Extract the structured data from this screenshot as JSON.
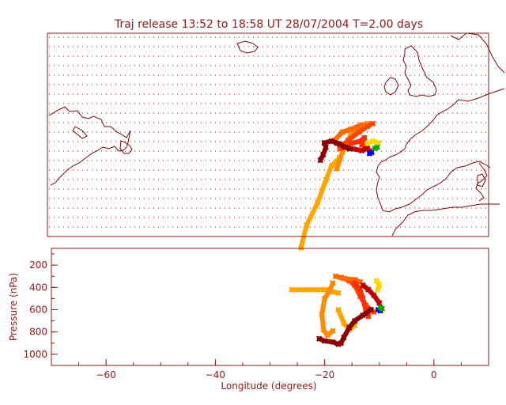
{
  "title": "Traj release 13:52 to 18:58 UT 28/07/2004    T=2.00 days",
  "colors": {
    "frame": "#8b1a1a",
    "coast": "#7a0a0a",
    "grid": "#8b1a1a"
  },
  "chart_data": [
    {
      "type": "map",
      "lon_range": [
        -70,
        10
      ],
      "lat_range": [
        32,
        68
      ],
      "grid": true,
      "trajectories": [
        {
          "color": "#ffa500",
          "points": [
            [
              -24,
              30
            ],
            [
              -23,
              34
            ],
            [
              -21,
              38
            ],
            [
              -19.5,
              42
            ],
            [
              -18.5,
              44.5
            ],
            [
              -17,
              46
            ]
          ]
        },
        {
          "color": "#ff8c00",
          "points": [
            [
              -17.5,
              44
            ],
            [
              -16.5,
              47
            ],
            [
              -15,
              50
            ],
            [
              -13.5,
              51.5
            ],
            [
              -12,
              52
            ]
          ]
        },
        {
          "color": "#ff4500",
          "points": [
            [
              -17,
              47.5
            ],
            [
              -15.5,
              49
            ],
            [
              -13.5,
              50.5
            ],
            [
              -12,
              51.5
            ],
            [
              -11,
              52
            ]
          ]
        },
        {
          "color": "#ff6a00",
          "points": [
            [
              -18,
              49
            ],
            [
              -16.5,
              50.5
            ],
            [
              -15,
              51
            ],
            [
              -13,
              51.8
            ]
          ]
        },
        {
          "color": "#ff2d00",
          "points": [
            [
              -15,
              48.5
            ],
            [
              -13.5,
              48.8
            ],
            [
              -12.5,
              49.5
            ],
            [
              -13,
              48.2
            ],
            [
              -11.5,
              47.2
            ]
          ]
        },
        {
          "color": "#ffd700",
          "points": [
            [
              -12,
              48.4
            ],
            [
              -11,
              48.9
            ],
            [
              -10,
              48.6
            ]
          ]
        },
        {
          "color": "#c00000",
          "points": [
            [
              -17.5,
              48.5
            ],
            [
              -16,
              47.8
            ],
            [
              -14.5,
              47.5
            ],
            [
              -13,
              47.2
            ],
            [
              -12,
              47.6
            ]
          ]
        },
        {
          "color": "#8b0000",
          "points": [
            [
              -20.5,
              45.5
            ],
            [
              -20,
              46.5
            ],
            [
              -19.5,
              47.8
            ],
            [
              -19.8,
              48.6
            ],
            [
              -18.5,
              48.9
            ],
            [
              -17,
              48.4
            ],
            [
              -16,
              47.8
            ],
            [
              -15.2,
              47.5
            ]
          ]
        },
        {
          "color": "#0000ff",
          "points": [
            [
              -11.6,
              46.7
            ],
            [
              -11.2,
              46.9
            ]
          ]
        },
        {
          "color": "#00aa00",
          "points": [
            [
              -10.6,
              47.6
            ],
            [
              -10.2,
              47.8
            ]
          ]
        }
      ]
    },
    {
      "type": "line",
      "xlabel": "Longitude  (degrees)",
      "ylabel": "Pressure  (nPa)",
      "xlim": [
        -70,
        10
      ],
      "ylim": [
        1100,
        50
      ],
      "xticks": [
        -60,
        -40,
        -20,
        0
      ],
      "yticks": [
        200,
        400,
        600,
        800,
        1000
      ],
      "trajectories": [
        {
          "color": "#ffa500",
          "points": [
            [
              -26,
              420
            ],
            [
              -23,
              420
            ],
            [
              -20,
              420
            ],
            [
              -18.5,
              440
            ],
            [
              -17.5,
              450
            ]
          ]
        },
        {
          "color": "#ff8c00",
          "points": [
            [
              -18.5,
              360
            ],
            [
              -19,
              420
            ],
            [
              -20,
              500
            ],
            [
              -20.5,
              640
            ],
            [
              -20.2,
              780
            ],
            [
              -19.5,
              830
            ],
            [
              -18.5,
              790
            ]
          ]
        },
        {
          "color": "#ffa500",
          "points": [
            [
              -17.5,
              600
            ],
            [
              -16.5,
              720
            ],
            [
              -15.5,
              780
            ],
            [
              -14.5,
              740
            ]
          ]
        },
        {
          "color": "#ff4500",
          "points": [
            [
              -17,
              310
            ],
            [
              -15.5,
              340
            ],
            [
              -14.5,
              380
            ],
            [
              -13.5,
              480
            ],
            [
              -12.5,
              560
            ],
            [
              -11,
              620
            ]
          ]
        },
        {
          "color": "#ff6a00",
          "points": [
            [
              -18,
              300
            ],
            [
              -16.5,
              320
            ],
            [
              -14.5,
              330
            ],
            [
              -13.5,
              350
            ]
          ]
        },
        {
          "color": "#ff2d00",
          "points": [
            [
              -14.5,
              360
            ],
            [
              -13.5,
              420
            ],
            [
              -13,
              500
            ],
            [
              -12.5,
              600
            ],
            [
              -12,
              660
            ]
          ]
        },
        {
          "color": "#ffd700",
          "points": [
            [
              -10.5,
              340
            ],
            [
              -10,
              380
            ],
            [
              -10.3,
              420
            ]
          ]
        },
        {
          "color": "#c00000",
          "points": [
            [
              -13,
              380
            ],
            [
              -12,
              420
            ],
            [
              -11,
              470
            ],
            [
              -10,
              540
            ]
          ]
        },
        {
          "color": "#8b0000",
          "points": [
            [
              -21,
              860
            ],
            [
              -20,
              880
            ],
            [
              -18.5,
              890
            ],
            [
              -17.5,
              910
            ],
            [
              -17,
              900
            ],
            [
              -16.5,
              850
            ],
            [
              -15.5,
              760
            ],
            [
              -14.5,
              700
            ],
            [
              -13,
              650
            ],
            [
              -11.5,
              600
            ]
          ]
        },
        {
          "color": "#0000ff",
          "points": [
            [
              -10.2,
              600
            ],
            [
              -9.8,
              610
            ]
          ]
        },
        {
          "color": "#00aa00",
          "points": [
            [
              -9.8,
              580
            ],
            [
              -9.5,
              590
            ]
          ]
        }
      ]
    }
  ]
}
